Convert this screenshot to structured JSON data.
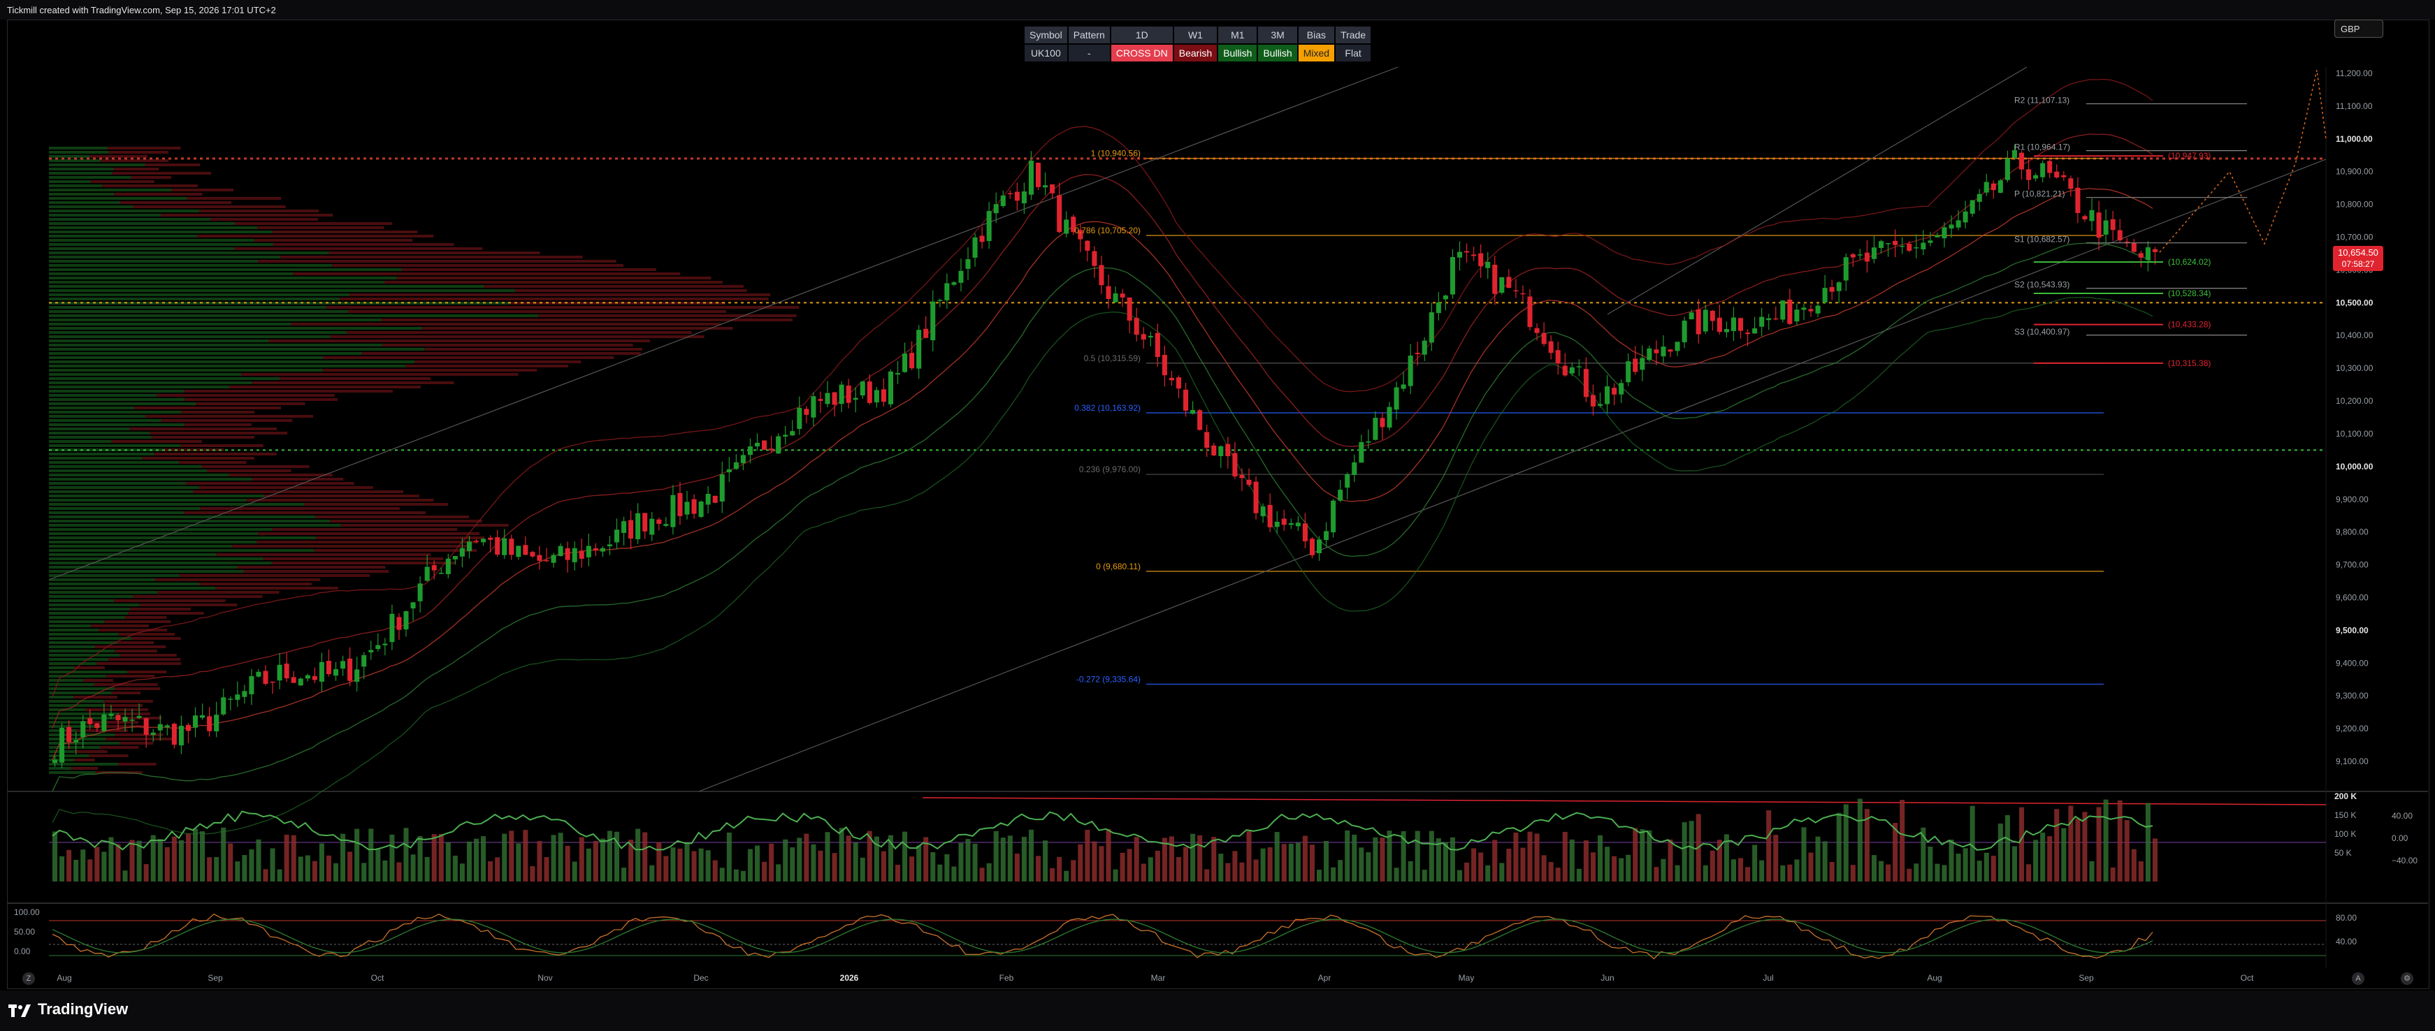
{
  "credit": "Tickmill created with TradingView.com, Sep 15, 2026 17:01 UTC+2",
  "currency": "GBP",
  "brand": "TradingView",
  "bias_table": {
    "headers": [
      "Symbol",
      "Pattern",
      "1D",
      "W1",
      "M1",
      "3M",
      "Bias",
      "Trade"
    ],
    "values": [
      "UK100",
      "-",
      "CROSS DN",
      "Bearish",
      "Bullish",
      "Bullish",
      "Mixed",
      "Flat"
    ]
  },
  "price_axis": [
    "11,200.00",
    "11,100.00",
    "11,000.00",
    "10,900.00",
    "10,800.00",
    "10,700.00",
    "10,600.00",
    "10,500.00",
    "10,400.00",
    "10,300.00",
    "10,200.00",
    "10,100.00",
    "10,000.00",
    "9,900.00",
    "9,800.00",
    "9,700.00",
    "9,600.00",
    "9,500.00",
    "9,400.00",
    "9,300.00",
    "9,200.00",
    "9,100.00"
  ],
  "price_axis_bold": [
    "11,000.00",
    "10,500.00",
    "10,000.00",
    "9,500.00"
  ],
  "price_tag": {
    "price": "10,654.50",
    "timer": "07:58:27"
  },
  "time_axis": [
    "Aug",
    "Sep",
    "Oct",
    "Nov",
    "Dec",
    "2026",
    "Feb",
    "Mar",
    "Apr",
    "May",
    "Jun",
    "Jul",
    "Aug",
    "Sep",
    "Oct"
  ],
  "fib_labels": [
    "1 (10,940.56)",
    "0.786 (10,705.20)",
    "0.5 (10,315.59)",
    "0.382 (10,163.92)",
    "0.236 (9,976.00)",
    "0 (9,680.11)",
    "-0.272 (9,335.64)"
  ],
  "pivot_labels": [
    "R2 (11,107.13)",
    "R1 (10,964.17)",
    "P (10,821.21)",
    "S1 (10,682.57)",
    "S2 (10,543.93)",
    "S3 (10,400.97)"
  ],
  "target_labels": [
    "(10,947.93)",
    "(10,624.02)",
    "(10,528.34)",
    "(10,433.28)",
    "(10,315.38)"
  ],
  "volume_axis": [
    "200 K",
    "150 K",
    "100 K",
    "50 K"
  ],
  "osc_axis_right": [
    "40.00",
    "0.00",
    "−40.00"
  ],
  "stoch_axis_left": [
    "100.00",
    "50.00",
    "0.00"
  ],
  "stoch_axis_right": [
    "80.00",
    "40.00"
  ],
  "colors": {
    "bull": "#1e9b2e",
    "bear": "#e0242f",
    "fib_orange": "#e39a12",
    "fib_blue": "#2962ff"
  },
  "chart_data": {
    "type": "candlestick",
    "title": "UK100",
    "timeframe": "1D",
    "ylim": [
      9050,
      11250
    ],
    "last_price": 10654.5,
    "fib_levels": [
      10940.56,
      10705.2,
      10315.59,
      10163.92,
      9976.0,
      9680.11,
      9335.64
    ],
    "pivots": {
      "R2": 11107.13,
      "R1": 10964.17,
      "P": 10821.21,
      "S1": 10682.57,
      "S2": 10543.93,
      "S3": 10400.97
    },
    "anchors": [
      {
        "month": "Aug",
        "close": 9150
      },
      {
        "month": "Sep",
        "close": 9240
      },
      {
        "month": "Oct",
        "close": 9380
      },
      {
        "month": "Nov",
        "close": 9760
      },
      {
        "month": "Dec",
        "close": 9740
      },
      {
        "month": "2026",
        "close": 10050
      },
      {
        "month": "Feb",
        "close": 10300
      },
      {
        "month": "Mar",
        "close": 10920
      },
      {
        "month": "Mar",
        "close": 10200
      },
      {
        "month": "Apr",
        "close": 9720
      },
      {
        "month": "Apr",
        "close": 10650
      },
      {
        "month": "May",
        "close": 10250
      },
      {
        "month": "Jun",
        "close": 10450
      },
      {
        "month": "Jul",
        "close": 10600
      },
      {
        "month": "Aug",
        "close": 10900
      },
      {
        "month": "Sep",
        "close": 10654.5
      }
    ]
  }
}
